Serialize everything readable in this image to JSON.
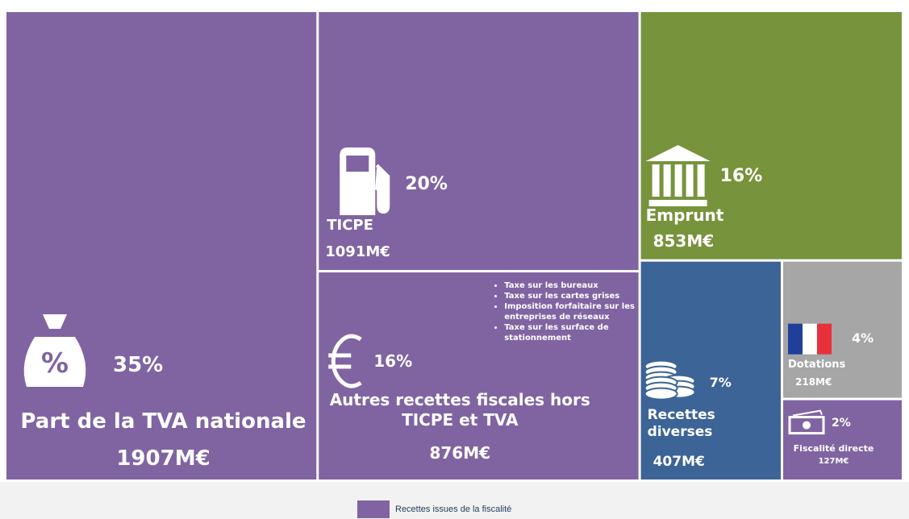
{
  "chart_data": {
    "type": "treemap",
    "categories": [
      "Part de la TVA nationale",
      "TICPE",
      "Emprunt",
      "Autres recettes fiscales hors TICPE et TVA",
      "Recettes diverses",
      "Dotations",
      "Fiscalité directe"
    ],
    "values": [
      1907,
      1091,
      853,
      876,
      407,
      218,
      127
    ],
    "value_labels": [
      "1907M€",
      "1091M€",
      "853M€",
      "876M€",
      "407M€",
      "218M€",
      "127M€"
    ],
    "percents": [
      35,
      20,
      16,
      16,
      7,
      4,
      2
    ],
    "percent_labels": [
      "35%",
      "20%",
      "16%",
      "16%",
      "7%",
      "4%",
      "2%"
    ],
    "colors": [
      "#8064a2",
      "#8064a2",
      "#77933c",
      "#8064a2",
      "#3c6496",
      "#a6a6a6",
      "#8064a2"
    ],
    "notes": [
      "Taxe sur les bureaux",
      "Taxe sur les cartes grises",
      "Imposition forfaitaire sur les entreprises de réseaux",
      "Taxe sur les surface de stationnement"
    ],
    "legend": [
      {
        "name": "Recettes issues de la fiscalité",
        "color": "#8064a2"
      }
    ]
  }
}
